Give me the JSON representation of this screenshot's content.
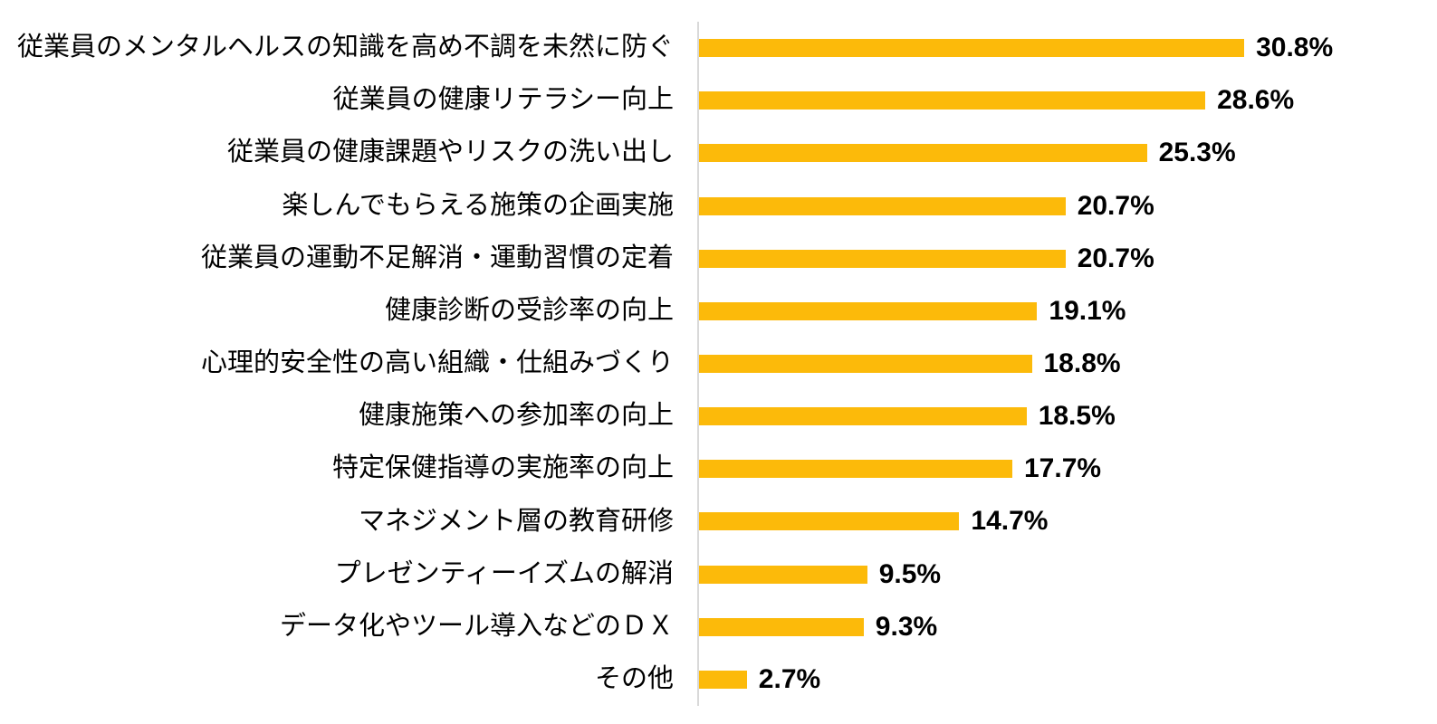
{
  "chart_data": {
    "type": "bar",
    "orientation": "horizontal",
    "title": "",
    "xlabel": "",
    "ylabel": "",
    "categories": [
      "従業員のメンタルヘルスの知識を高め不調を未然に防ぐ",
      "従業員の健康リテラシー向上",
      "従業員の健康課題やリスクの洗い出し",
      "楽しんでもらえる施策の企画実施",
      "従業員の運動不足解消・運動習慣の定着",
      "健康診断の受診率の向上",
      "心理的安全性の高い組織・仕組みづくり",
      "健康施策への参加率の向上",
      "特定保健指導の実施率の向上",
      "マネジメント層の教育研修",
      "プレゼンティーイズムの解消",
      "データ化やツール導入などのＤＸ",
      "その他"
    ],
    "values": [
      30.8,
      28.6,
      25.3,
      20.7,
      20.7,
      19.1,
      18.8,
      18.5,
      17.7,
      14.7,
      9.5,
      9.3,
      2.7
    ],
    "value_labels": [
      "30.8%",
      "28.6%",
      "25.3%",
      "20.7%",
      "20.7%",
      "19.1%",
      "18.8%",
      "18.5%",
      "17.7%",
      "14.7%",
      "9.5%",
      "9.3%",
      "2.7%"
    ],
    "xlim": [
      0,
      41.7
    ],
    "grid": false,
    "legend": false,
    "bar_color": "#FCBA0A",
    "axis_line_color": "#D9D9D9",
    "text_color": "#000000",
    "background": "#FFFFFF"
  }
}
